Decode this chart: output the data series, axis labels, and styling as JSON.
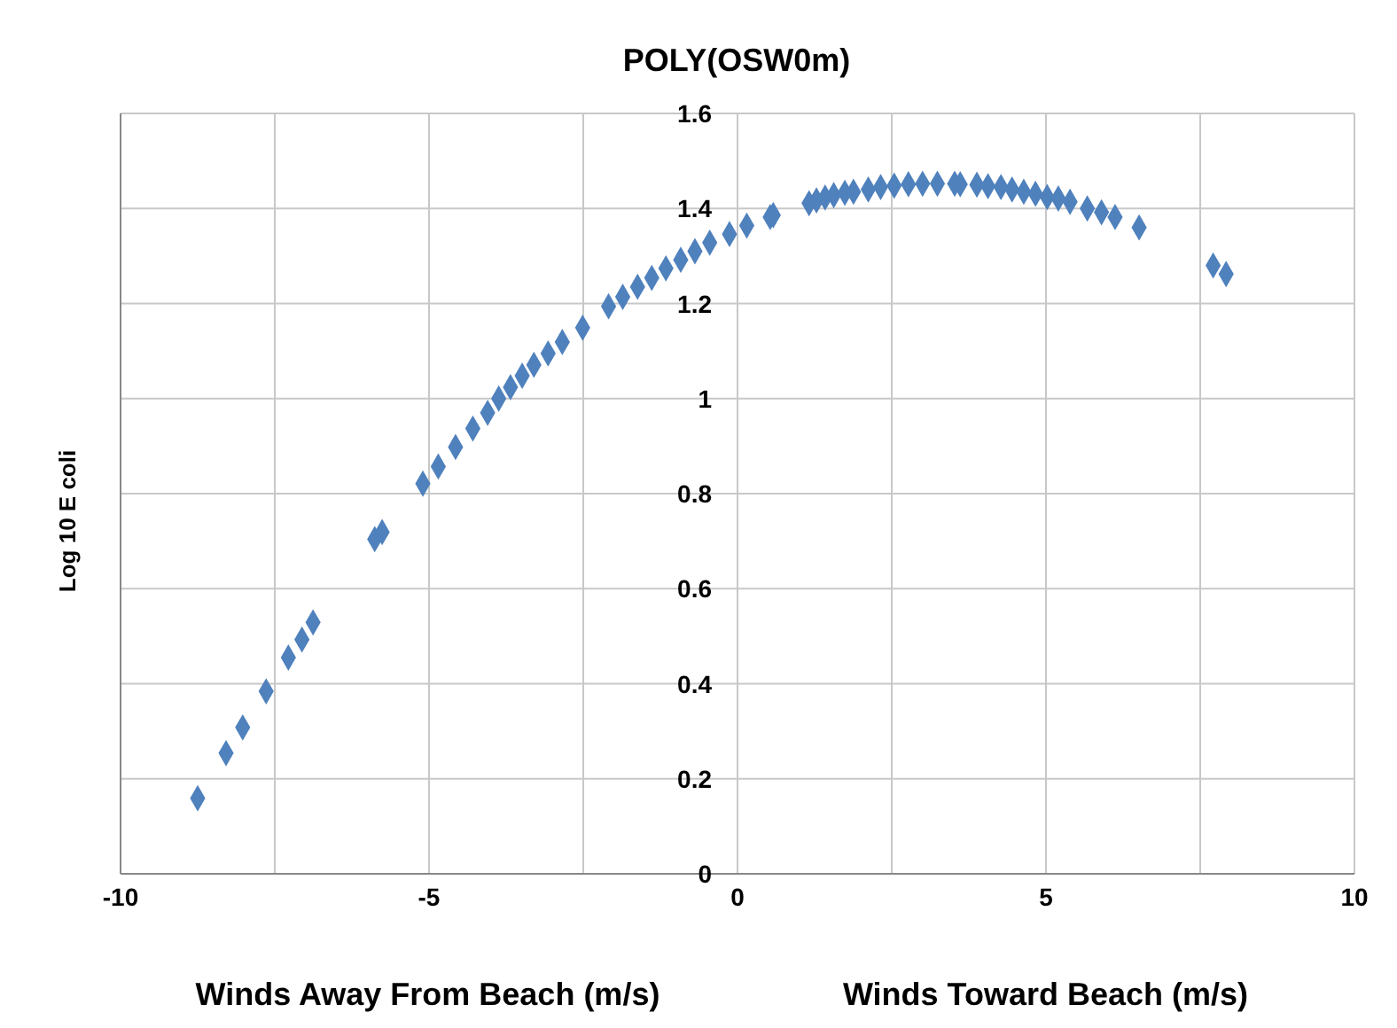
{
  "chart_data": {
    "type": "scatter",
    "title": "POLY(OSW0m)",
    "xlabel": "Winds Away From Beach (m/s)",
    "ylabel": "Log 10 E coli",
    "annotations": [
      "Winds Toward Beach (m/s)"
    ],
    "x": [
      -8.75,
      -8.29,
      -8.02,
      -7.64,
      -7.28,
      -7.06,
      -6.88,
      -5.88,
      -5.76,
      -5.1,
      -4.85,
      -4.57,
      -4.29,
      -4.05,
      -3.87,
      -3.68,
      -3.49,
      -3.3,
      -3.07,
      -2.84,
      -2.51,
      -2.09,
      -1.86,
      -1.62,
      -1.39,
      -1.16,
      -0.92,
      -0.69,
      -0.45,
      -0.13,
      0.15,
      0.53,
      0.58,
      1.16,
      1.28,
      1.42,
      1.56,
      1.74,
      1.88,
      2.12,
      2.32,
      2.54,
      2.77,
      3.0,
      3.24,
      3.52,
      3.61,
      3.88,
      4.06,
      4.27,
      4.45,
      4.64,
      4.83,
      5.02,
      5.2,
      5.39,
      5.67,
      5.9,
      6.12,
      6.51,
      7.71,
      7.92
    ],
    "series": [
      {
        "color": "#4f81bd",
        "values": [
          0.159,
          0.254,
          0.308,
          0.384,
          0.455,
          0.493,
          0.529,
          0.704,
          0.719,
          0.821,
          0.857,
          0.898,
          0.937,
          0.97,
          1.0,
          1.024,
          1.048,
          1.071,
          1.095,
          1.119,
          1.149,
          1.194,
          1.214,
          1.235,
          1.254,
          1.274,
          1.292,
          1.31,
          1.328,
          1.346,
          1.364,
          1.382,
          1.386,
          1.411,
          1.417,
          1.423,
          1.428,
          1.433,
          1.435,
          1.44,
          1.445,
          1.448,
          1.451,
          1.452,
          1.452,
          1.452,
          1.451,
          1.45,
          1.447,
          1.445,
          1.44,
          1.435,
          1.431,
          1.424,
          1.421,
          1.414,
          1.4,
          1.392,
          1.382,
          1.36,
          1.28,
          1.262
        ]
      }
    ],
    "xlim": [
      -10,
      10
    ],
    "xticks": [
      -10,
      {
        "value": -7.5,
        "label": null
      },
      -5,
      {
        "value": -2.5,
        "label": null
      },
      0,
      {
        "value": 2.5,
        "label": null
      },
      5,
      {
        "value": 7.5,
        "label": null
      },
      10
    ],
    "ylim": [
      0,
      1.6
    ],
    "yticks": [
      0,
      0.2,
      0.4,
      0.6,
      0.8,
      1,
      1.2,
      1.4,
      1.6
    ],
    "grid": true,
    "marker": "diamond",
    "legend": false
  }
}
